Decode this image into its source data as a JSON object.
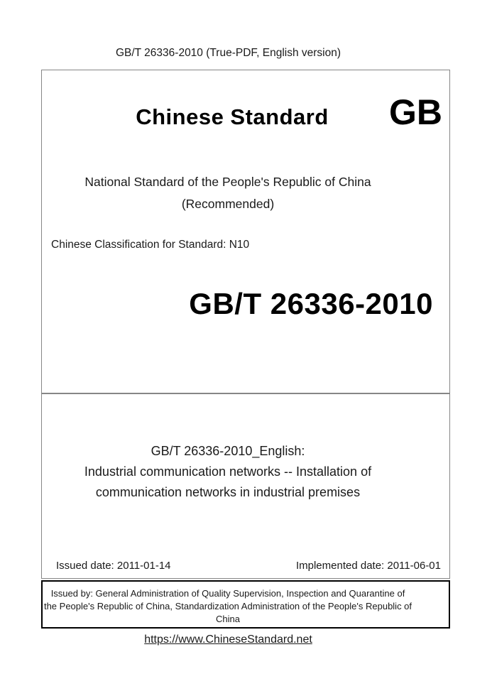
{
  "page": {
    "header": "GB/T 26336-2010 (True-PDF, English version)",
    "footer_link": "https://www.ChineseStandard.net"
  },
  "cover": {
    "brand_title": "Chinese Standard",
    "gb_logo": "GB",
    "subtitle_line1": "National Standard of the People's Republic of China",
    "subtitle_line2": "(Recommended)",
    "classification": "Chinese Classification for Standard: N10",
    "standard_number": "GB/T 26336-2010"
  },
  "standard_info": {
    "english_title_lines": [
      "GB/T 26336-2010_English:",
      "Industrial communication networks -- Installation of",
      "communication networks in industrial premises"
    ],
    "issued_date_label": "Issued date: 2011-01-14",
    "implemented_date_label": "Implemented date: 2011-06-01"
  },
  "issuer": {
    "lines": [
      "Issued by: General Administration of Quality Supervision, Inspection and Quarantine of",
      "the People's Republic of China, Standardization Administration of the People's Republic of",
      "China"
    ]
  },
  "colors": {
    "border_gray": "#868686",
    "border_black": "#000000",
    "text": "#1a1a1a"
  }
}
